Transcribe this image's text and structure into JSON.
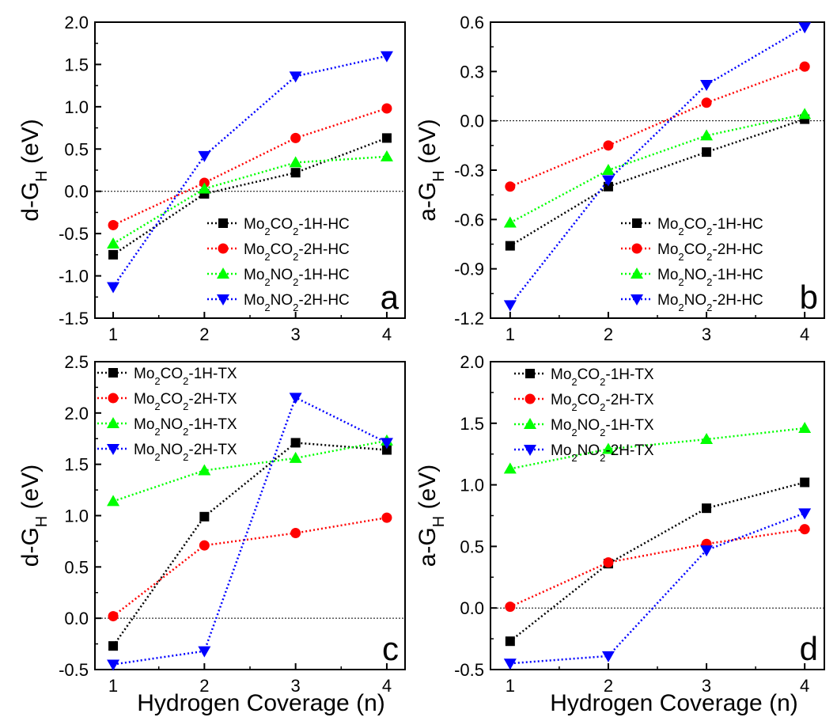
{
  "figure": {
    "xlabel": "Hydrogen Coverage (n)"
  },
  "chart_data": [
    {
      "type": "line",
      "panel_letter": "a",
      "ylabel": {
        "prefix": "d-G",
        "sub": "H",
        "suffix": " (eV)"
      },
      "x": [
        1,
        2,
        3,
        4
      ],
      "xticks": [
        "1",
        "2",
        "3",
        "4"
      ],
      "xlim": [
        0.8,
        4.2
      ],
      "ylim": [
        -1.5,
        2.0
      ],
      "yticks": [
        "-1.5",
        "-1.0",
        "-0.5",
        "0.0",
        "0.5",
        "1.0",
        "1.5",
        "2.0"
      ],
      "zero_line": true,
      "legend_position": "bottom-right",
      "series": [
        {
          "name": [
            "Mo",
            "2",
            "CO",
            "2",
            "-1H-HC"
          ],
          "color": "#000000",
          "marker": "square",
          "values": [
            -0.75,
            -0.03,
            0.22,
            0.63
          ]
        },
        {
          "name": [
            "Mo",
            "2",
            "CO",
            "2",
            "-2H-HC"
          ],
          "color": "#ff0000",
          "marker": "circle",
          "values": [
            -0.4,
            0.1,
            0.63,
            0.98
          ]
        },
        {
          "name": [
            "Mo",
            "2",
            "NO",
            "2",
            "-1H-HC"
          ],
          "color": "#00ff00",
          "marker": "triangle-up",
          "values": [
            -0.62,
            0.03,
            0.34,
            0.41
          ]
        },
        {
          "name": [
            "Mo",
            "2",
            "NO",
            "2",
            "-2H-HC"
          ],
          "color": "#0000ff",
          "marker": "triangle-down",
          "values": [
            -1.13,
            0.42,
            1.36,
            1.6
          ]
        }
      ]
    },
    {
      "type": "line",
      "panel_letter": "b",
      "ylabel": {
        "prefix": "a-G",
        "sub": "H",
        "suffix": " (eV)"
      },
      "x": [
        1,
        2,
        3,
        4
      ],
      "xticks": [
        "1",
        "2",
        "3",
        "4"
      ],
      "xlim": [
        0.8,
        4.2
      ],
      "ylim": [
        -1.2,
        0.6
      ],
      "yticks": [
        "-1.2",
        "-0.9",
        "-0.6",
        "-0.3",
        "0.0",
        "0.3",
        "0.6"
      ],
      "zero_line": true,
      "legend_position": "bottom-right",
      "series": [
        {
          "name": [
            "Mo",
            "2",
            "CO",
            "2",
            "-1H-HC"
          ],
          "color": "#000000",
          "marker": "square",
          "values": [
            -0.76,
            -0.4,
            -0.19,
            0.01
          ]
        },
        {
          "name": [
            "Mo",
            "2",
            "CO",
            "2",
            "-2H-HC"
          ],
          "color": "#ff0000",
          "marker": "circle",
          "values": [
            -0.4,
            -0.15,
            0.11,
            0.33
          ]
        },
        {
          "name": [
            "Mo",
            "2",
            "NO",
            "2",
            "-1H-HC"
          ],
          "color": "#00ff00",
          "marker": "triangle-up",
          "values": [
            -0.62,
            -0.3,
            -0.09,
            0.04
          ]
        },
        {
          "name": [
            "Mo",
            "2",
            "NO",
            "2",
            "-2H-HC"
          ],
          "color": "#0000ff",
          "marker": "triangle-down",
          "values": [
            -1.12,
            -0.36,
            0.22,
            0.57
          ]
        }
      ]
    },
    {
      "type": "line",
      "panel_letter": "c",
      "ylabel": {
        "prefix": "d-G",
        "sub": "H",
        "suffix": " (eV)"
      },
      "x": [
        1,
        2,
        3,
        4
      ],
      "xticks": [
        "1",
        "2",
        "3",
        "4"
      ],
      "xlim": [
        0.8,
        4.2
      ],
      "ylim": [
        -0.5,
        2.5
      ],
      "yticks": [
        "-0.5",
        "0.0",
        "0.5",
        "1.0",
        "1.5",
        "2.0",
        "2.5"
      ],
      "zero_line": true,
      "legend_position": "top-left",
      "series": [
        {
          "name": [
            "Mo",
            "2",
            "CO",
            "2",
            "-1H-TX"
          ],
          "color": "#000000",
          "marker": "square",
          "values": [
            -0.27,
            0.99,
            1.71,
            1.64
          ]
        },
        {
          "name": [
            "Mo",
            "2",
            "CO",
            "2",
            "-2H-TX"
          ],
          "color": "#ff0000",
          "marker": "circle",
          "values": [
            0.02,
            0.71,
            0.83,
            0.98
          ]
        },
        {
          "name": [
            "Mo",
            "2",
            "NO",
            "2",
            "-1H-TX"
          ],
          "color": "#00ff00",
          "marker": "triangle-up",
          "values": [
            1.14,
            1.44,
            1.56,
            1.73
          ]
        },
        {
          "name": [
            "Mo",
            "2",
            "NO",
            "2",
            "-2H-TX"
          ],
          "color": "#0000ff",
          "marker": "triangle-down",
          "values": [
            -0.45,
            -0.32,
            2.15,
            1.71
          ]
        }
      ]
    },
    {
      "type": "line",
      "panel_letter": "d",
      "ylabel": {
        "prefix": "a-G",
        "sub": "H",
        "suffix": " (eV)"
      },
      "x": [
        1,
        2,
        3,
        4
      ],
      "xticks": [
        "1",
        "2",
        "3",
        "4"
      ],
      "xlim": [
        0.8,
        4.2
      ],
      "ylim": [
        -0.5,
        2.0
      ],
      "yticks": [
        "-0.5",
        "0.0",
        "0.5",
        "1.0",
        "1.5",
        "2.0"
      ],
      "zero_line": true,
      "legend_position": "top-left",
      "series": [
        {
          "name": [
            "Mo",
            "2",
            "CO",
            "2",
            "-1H-TX"
          ],
          "color": "#000000",
          "marker": "square",
          "values": [
            -0.27,
            0.36,
            0.81,
            1.02
          ]
        },
        {
          "name": [
            "Mo",
            "2",
            "CO",
            "2",
            "-2H-TX"
          ],
          "color": "#ff0000",
          "marker": "circle",
          "values": [
            0.01,
            0.37,
            0.52,
            0.64
          ]
        },
        {
          "name": [
            "Mo",
            "2",
            "NO",
            "2",
            "-1H-TX"
          ],
          "color": "#00ff00",
          "marker": "triangle-up",
          "values": [
            1.13,
            1.29,
            1.37,
            1.46
          ]
        },
        {
          "name": [
            "Mo",
            "2",
            "NO",
            "2",
            "-2H-TX"
          ],
          "color": "#0000ff",
          "marker": "triangle-down",
          "values": [
            -0.45,
            -0.39,
            0.47,
            0.77
          ]
        }
      ]
    }
  ]
}
